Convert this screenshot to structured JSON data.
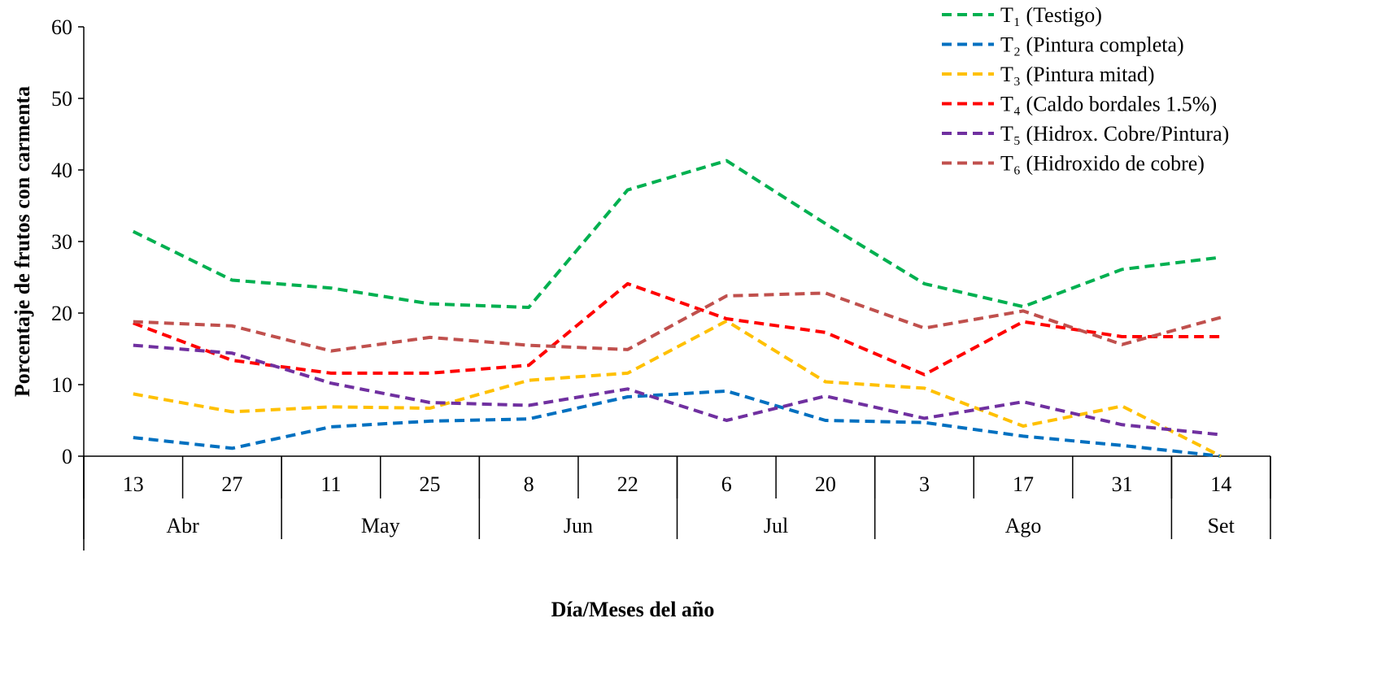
{
  "chart_data": {
    "type": "line",
    "title": "",
    "ylabel": "Porcentaje de frutos con carmenta",
    "xlabel": "Día/Meses del año",
    "ylim": [
      0,
      60
    ],
    "yticks": [
      0,
      10,
      20,
      30,
      40,
      50,
      60
    ],
    "grid": false,
    "legend_position": "top-right",
    "categories": [
      "13",
      "27",
      "11",
      "25",
      "8",
      "22",
      "6",
      "20",
      "3",
      "17",
      "31",
      "14"
    ],
    "months": [
      {
        "label": "Abr",
        "span": 2
      },
      {
        "label": "May",
        "span": 2
      },
      {
        "label": "Jun",
        "span": 2
      },
      {
        "label": "Jul",
        "span": 2
      },
      {
        "label": "Ago",
        "span": 3
      },
      {
        "label": "Set",
        "span": 1
      }
    ],
    "series": [
      {
        "name": "T₁ (Testigo)",
        "color": "#00b050",
        "values": [
          31.4,
          24.6,
          23.5,
          21.3,
          20.8,
          37.2,
          41.3,
          32.5,
          24.1,
          20.9,
          26.1,
          27.8
        ]
      },
      {
        "name": "T₂ (Pintura completa)",
        "color": "#0070c0",
        "values": [
          2.6,
          1.1,
          4.1,
          4.9,
          5.2,
          8.3,
          9.1,
          5.0,
          4.7,
          2.8,
          1.5,
          0.0
        ]
      },
      {
        "name": "T₃ (Pintura mitad)",
        "color": "#ffc000",
        "values": [
          8.7,
          6.2,
          6.9,
          6.7,
          10.6,
          11.6,
          18.9,
          10.4,
          9.5,
          4.2,
          7.0,
          0.0
        ]
      },
      {
        "name": "T₄ (Caldo bordales 1.5%)",
        "color": "#ff0000",
        "values": [
          18.6,
          13.4,
          11.6,
          11.6,
          12.7,
          24.1,
          19.2,
          17.3,
          11.4,
          18.8,
          16.7,
          16.7
        ]
      },
      {
        "name": "T₅ (Hidrox. Cobre/Pintura)",
        "color": "#7030a0",
        "values": [
          15.5,
          14.4,
          10.2,
          7.5,
          7.1,
          9.4,
          5.0,
          8.4,
          5.3,
          7.6,
          4.4,
          3.0
        ]
      },
      {
        "name": "T₆ (Hidroxido de cobre)",
        "color": "#c0504d",
        "values": [
          18.8,
          18.2,
          14.7,
          16.6,
          15.5,
          14.9,
          22.4,
          22.8,
          17.9,
          20.3,
          15.6,
          19.4
        ]
      }
    ]
  }
}
